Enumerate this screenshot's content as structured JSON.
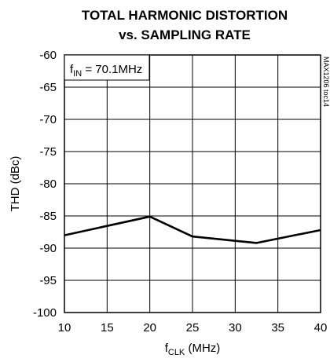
{
  "chart_data": {
    "type": "line",
    "title": "TOTAL HARMONIC DISTORTION",
    "subtitle": "vs. SAMPLING RATE",
    "xlabel": {
      "main": "f",
      "sub": "CLK",
      "rest": " (MHz)"
    },
    "ylabel": "THD (dBc)",
    "xlim": [
      10,
      40
    ],
    "ylim": [
      -100,
      -60
    ],
    "xticks": [
      "10",
      "15",
      "20",
      "25",
      "30",
      "35",
      "40"
    ],
    "yticks": [
      "-60",
      "-65",
      "-70",
      "-75",
      "-80",
      "-85",
      "-90",
      "-95",
      "-100"
    ],
    "grid": true,
    "annotation": {
      "main": "f",
      "sub": "IN",
      "rest": " = 70.1MHz"
    },
    "side_note": "MAX1206 toc14",
    "series": [
      {
        "x": [
          10,
          20,
          25,
          32.5,
          40
        ],
        "y": [
          -88.0,
          -85.1,
          -88.2,
          -89.2,
          -87.2
        ]
      }
    ]
  }
}
